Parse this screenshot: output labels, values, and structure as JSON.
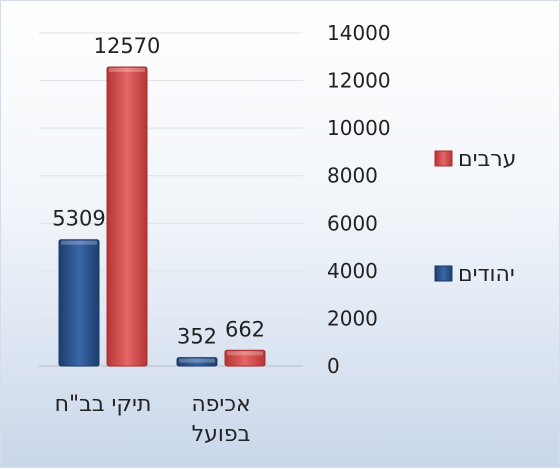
{
  "chart_data": {
    "type": "bar",
    "categories": [
      "תיקי בב\"ח",
      "אכיפה בפועל"
    ],
    "series": [
      {
        "name": "יהודים",
        "values": [
          5309,
          352
        ],
        "color": "#2a528a"
      },
      {
        "name": "ערבים",
        "values": [
          12570,
          662
        ],
        "color": "#d44a4a"
      }
    ],
    "data_labels": [
      [
        "5309",
        "352"
      ],
      [
        "12570",
        "662"
      ]
    ],
    "yticks": [
      "0",
      "2000",
      "4000",
      "6000",
      "8000",
      "10000",
      "12000",
      "14000"
    ],
    "ylim": [
      0,
      14000
    ],
    "axis_position": "right",
    "grid": true,
    "legend_position": "right",
    "title": "",
    "xlabel": "",
    "ylabel": ""
  }
}
